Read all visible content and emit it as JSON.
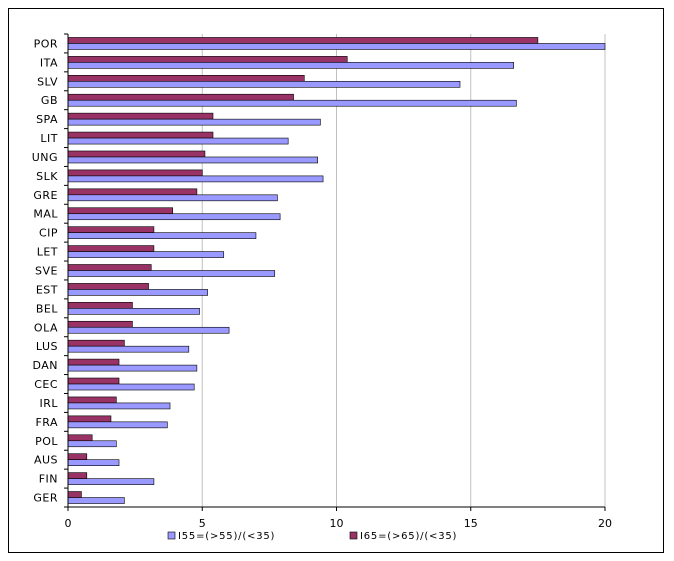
{
  "chart_data": {
    "type": "bar",
    "orientation": "horizontal",
    "categories": [
      "POR",
      "ITA",
      "SLV",
      "GB",
      "SPA",
      "LIT",
      "UNG",
      "SLK",
      "GRE",
      "MAL",
      "CIP",
      "LET",
      "SVE",
      "EST",
      "BEL",
      "OLA",
      "LUS",
      "DAN",
      "CEC",
      "IRL",
      "FRA",
      "POL",
      "AUS",
      "FIN",
      "GER"
    ],
    "series": [
      {
        "name": "I55=(>55)/(<35)",
        "color": "#9999ff",
        "values": [
          20.0,
          16.6,
          14.6,
          16.7,
          9.4,
          8.2,
          9.3,
          9.5,
          7.8,
          7.9,
          7.0,
          5.8,
          7.7,
          5.2,
          4.9,
          6.0,
          4.5,
          4.8,
          4.7,
          3.8,
          3.7,
          1.8,
          1.9,
          3.2,
          2.1
        ]
      },
      {
        "name": "I65=(>65)/(<35)",
        "color": "#993366",
        "values": [
          17.5,
          10.4,
          8.8,
          8.4,
          5.4,
          5.4,
          5.1,
          5.0,
          4.8,
          3.9,
          3.2,
          3.2,
          3.1,
          3.0,
          2.4,
          2.4,
          2.1,
          1.9,
          1.9,
          1.8,
          1.6,
          0.9,
          0.7,
          0.7,
          0.5
        ]
      }
    ],
    "xlim": [
      0,
      20
    ],
    "xticks": [
      "0",
      "5",
      "10",
      "15",
      "20"
    ],
    "grid": "vertical",
    "legend": "bottom"
  }
}
